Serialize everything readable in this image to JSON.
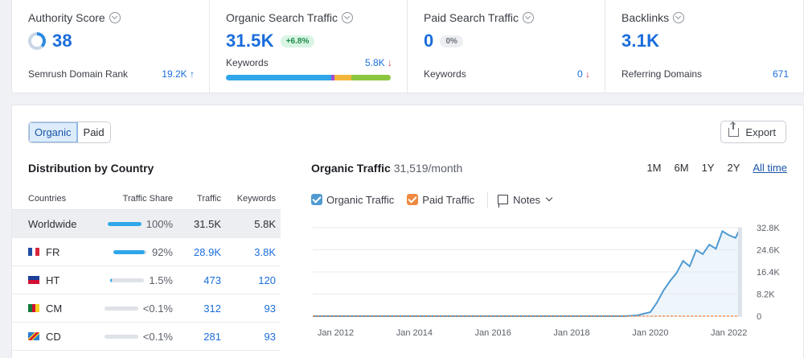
{
  "cards": [
    {
      "title": "Authority Score",
      "value": "38",
      "footer_label": "Semrush Domain Rank",
      "footer_value": "19.2K",
      "footer_arrow": "↑"
    },
    {
      "title": "Organic Search Traffic",
      "value": "31.5K",
      "badge": "+6.8%",
      "row_label": "Keywords",
      "row_value": "5.8K",
      "row_arrow": "↓"
    },
    {
      "title": "Paid Search Traffic",
      "value": "0",
      "badge": "0%",
      "footer_label": "Keywords",
      "footer_value": "0",
      "footer_arrow": "↓"
    },
    {
      "title": "Backlinks",
      "value": "3.1K",
      "footer_label": "Referring Domains",
      "footer_value": "671"
    }
  ],
  "keyword_bar": [
    {
      "share": 0.64,
      "color": "#2fa6e9"
    },
    {
      "share": 0.02,
      "color": "#a24bd6"
    },
    {
      "share": 0.1,
      "color": "#f4b63a"
    },
    {
      "share": 0.24,
      "color": "#8cc63f"
    }
  ],
  "panel": {
    "tab_organic": "Organic",
    "tab_paid": "Paid",
    "export": "Export",
    "dist_title": "Distribution by Country",
    "columns": [
      "Countries",
      "Traffic Share",
      "Traffic",
      "Keywords"
    ]
  },
  "countries": [
    {
      "name": "Worldwide",
      "share_label": "100%",
      "share": 1.0,
      "traffic": "31.5K",
      "keywords": "5.8K",
      "flag": "none"
    },
    {
      "name": "FR",
      "share_label": "92%",
      "share": 0.92,
      "traffic": "28.9K",
      "keywords": "3.8K",
      "flag": "fr"
    },
    {
      "name": "HT",
      "share_label": "1.5%",
      "share": 0.02,
      "traffic": "473",
      "keywords": "120",
      "flag": "ht"
    },
    {
      "name": "CM",
      "share_label": "<0.1%",
      "share": 0.0,
      "traffic": "312",
      "keywords": "93",
      "flag": "cm"
    },
    {
      "name": "CD",
      "share_label": "<0.1%",
      "share": 0.0,
      "traffic": "281",
      "keywords": "93",
      "flag": "cd"
    }
  ],
  "chart": {
    "title": "Organic Traffic",
    "subtitle": "31,519/month",
    "ranges": [
      "1M",
      "6M",
      "1Y",
      "2Y",
      "All time"
    ],
    "active_range": "All time",
    "legend_organic": "Organic Traffic",
    "legend_paid": "Paid Traffic",
    "notes": "Notes",
    "organic_color": "#4f9ad1",
    "paid_color": "#f0883e"
  },
  "chart_data": {
    "type": "line",
    "title": "Organic Traffic",
    "x_ticks": [
      "Jan 2012",
      "Jan 2014",
      "Jan 2016",
      "Jan 2018",
      "Jan 2020",
      "Jan 2022"
    ],
    "y_ticks": [
      "32.8K",
      "24.6K",
      "16.4K",
      "8.2K",
      "0"
    ],
    "ylim": [
      0,
      32800
    ],
    "xlim": [
      "2011-06",
      "2022-05"
    ],
    "series": [
      {
        "name": "Organic Traffic",
        "x": [
          "2011-06",
          "2019-05",
          "2019-09",
          "2020-01",
          "2020-03",
          "2020-05",
          "2020-07",
          "2020-09",
          "2020-11",
          "2021-01",
          "2021-03",
          "2021-05",
          "2021-07",
          "2021-09",
          "2021-11",
          "2022-01",
          "2022-03",
          "2022-04"
        ],
        "y": [
          0,
          0,
          300,
          1500,
          5000,
          9500,
          13000,
          16000,
          20500,
          18500,
          24500,
          23000,
          26500,
          25000,
          31500,
          30000,
          29000,
          31500
        ]
      },
      {
        "name": "Paid Traffic",
        "x": [
          "2011-06",
          "2022-04"
        ],
        "y": [
          0,
          0
        ]
      }
    ],
    "grid": true,
    "legend_position": "top-left"
  }
}
